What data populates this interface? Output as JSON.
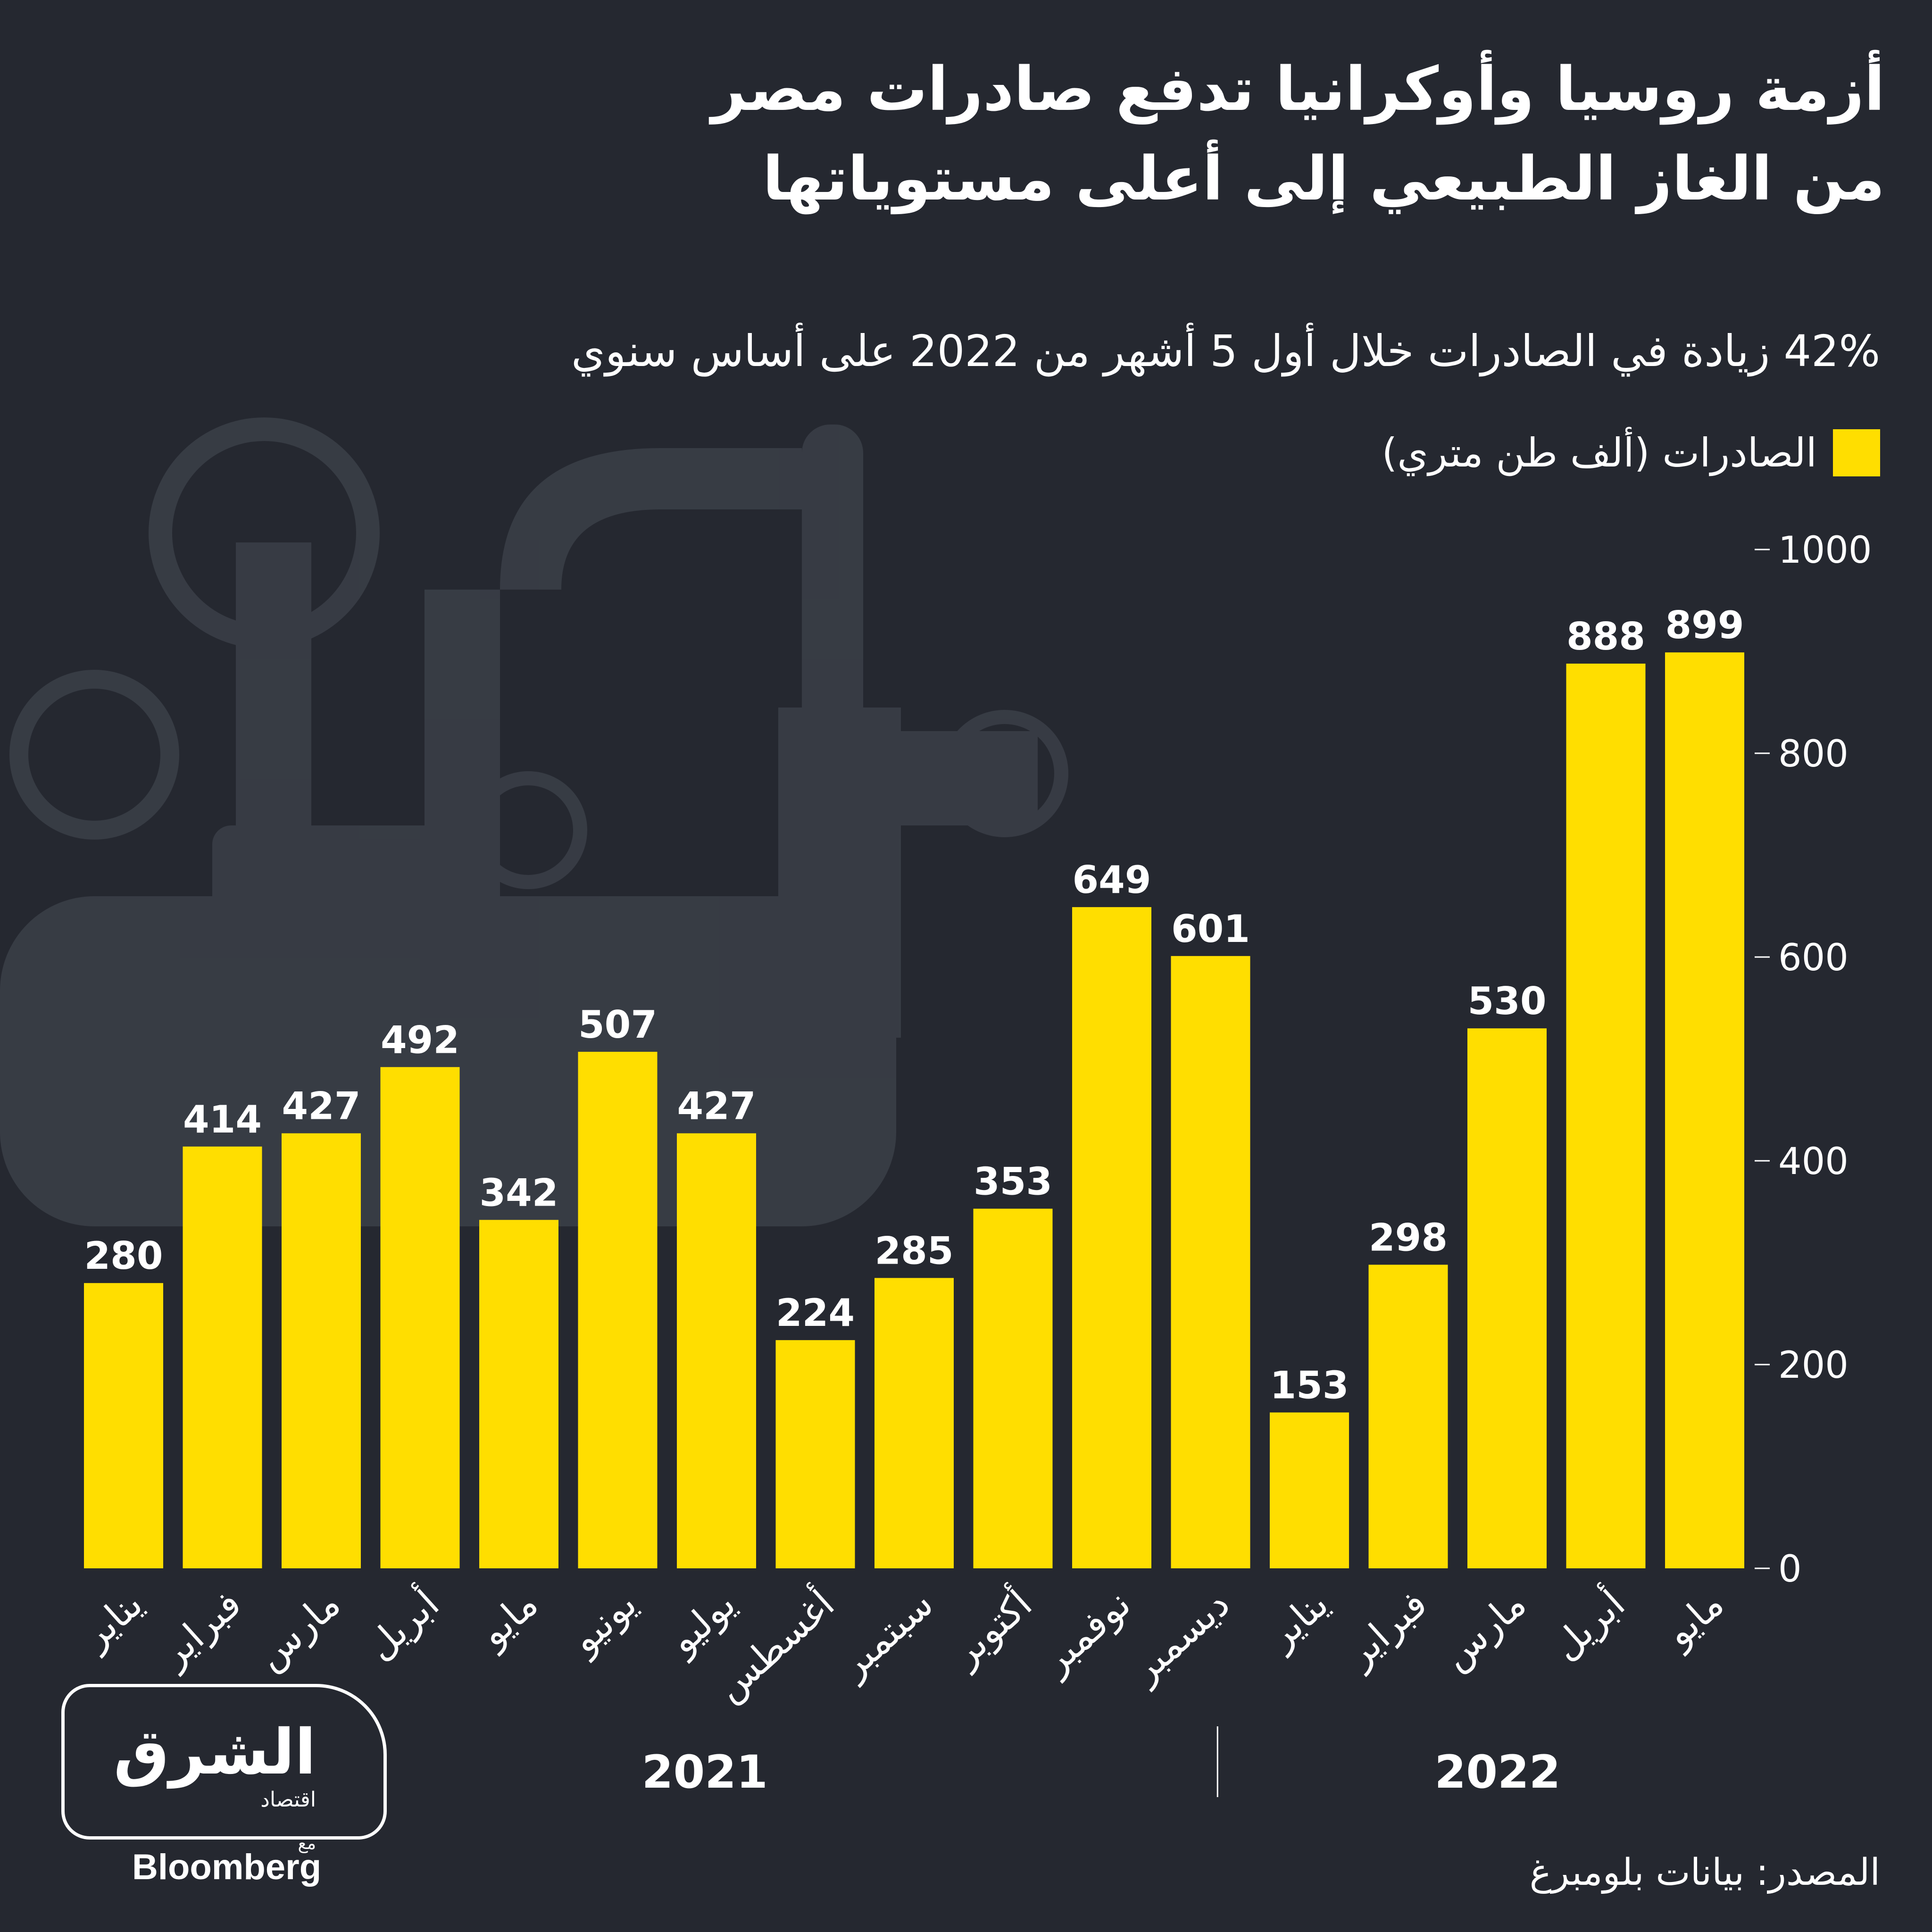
{
  "header": {
    "title_line1": "أزمة روسيا وأوكرانيا تدفع صادرات مصر",
    "title_line2": "من الغاز الطبيعي إلى أعلى مستوياتها",
    "subtitle": "42% زيادة في الصادرات خلال أول 5 أشهر من 2022 على أساس سنوي"
  },
  "legend": {
    "label": "الصادرات (ألف طن متري)",
    "color": "#ffde00"
  },
  "chart_data": {
    "type": "bar",
    "categories": [
      "يناير",
      "فبراير",
      "مارس",
      "أبريل",
      "مايو",
      "يونيو",
      "يوليو",
      "أغسطس",
      "سبتمبر",
      "أكتوبر",
      "نوفمبر",
      "ديسمبر",
      "يناير",
      "فبراير",
      "مارس",
      "أبريل",
      "مايو"
    ],
    "values": [
      280,
      414,
      427,
      492,
      342,
      507,
      427,
      224,
      285,
      353,
      649,
      601,
      153,
      298,
      530,
      888,
      899
    ],
    "groups": [
      {
        "label": "2021",
        "count": 12
      },
      {
        "label": "2022",
        "count": 5
      }
    ],
    "y_ticks": [
      0,
      200,
      400,
      600,
      800,
      1000
    ],
    "ylim": [
      0,
      1000
    ],
    "bar_color": "#ffde00",
    "axis_side": "right",
    "legend_position": "top-right",
    "grid": false
  },
  "source": "المصدر: بيانات بلومبرغ",
  "logo": {
    "arabic": "الشرق",
    "sub": "اقتصاد",
    "with": "مع",
    "partner": "Bloomberg"
  }
}
